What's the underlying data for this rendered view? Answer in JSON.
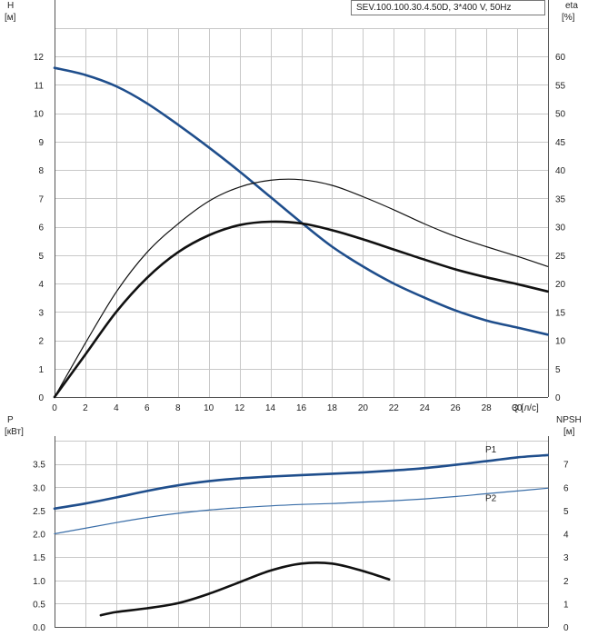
{
  "legend_text": "SEV.100.100.30.4.50D, 3*400 V, 50Hz",
  "chart_data": [
    {
      "type": "line",
      "ylabel_left": "H",
      "ylabel_left_unit": "[м]",
      "ylabel_right": "eta",
      "ylabel_right_unit": "[%]",
      "xlabel": "Q [л/с]",
      "xlim": [
        0,
        32
      ],
      "ylim_left": [
        0,
        13
      ],
      "ylim_right": [
        0,
        65
      ],
      "x_ticks": [
        0,
        2,
        4,
        6,
        8,
        10,
        12,
        14,
        16,
        18,
        20,
        22,
        24,
        26,
        28,
        30
      ],
      "y_ticks_left": [
        0,
        1,
        2,
        3,
        4,
        5,
        6,
        7,
        8,
        9,
        10,
        11,
        12
      ],
      "y_ticks_right": [
        0,
        5,
        10,
        15,
        20,
        25,
        30,
        35,
        40,
        45,
        50,
        55,
        60
      ],
      "grid": true,
      "series": [
        {
          "name": "",
          "axis": "left",
          "color": "#1f4e8c",
          "x": [
            0,
            2,
            4,
            6,
            8,
            10,
            12,
            14,
            16,
            18,
            20,
            22,
            24,
            26,
            28,
            30,
            32
          ],
          "y": [
            11.6,
            11.35,
            10.95,
            10.35,
            9.6,
            8.8,
            7.95,
            7.05,
            6.15,
            5.3,
            4.6,
            4.0,
            3.5,
            3.05,
            2.7,
            2.45,
            2.2
          ]
        },
        {
          "name": "",
          "axis": "right",
          "color": "#111111",
          "weight": "thin",
          "x": [
            0,
            2,
            4,
            6,
            8,
            10,
            12,
            14,
            16,
            18,
            20,
            22,
            24,
            26,
            28,
            30,
            32
          ],
          "y": [
            0,
            9.5,
            18.5,
            25.5,
            30.5,
            34.5,
            37.0,
            38.2,
            38.3,
            37.3,
            35.3,
            33.0,
            30.5,
            28.3,
            26.5,
            24.8,
            23.0
          ]
        },
        {
          "name": "",
          "axis": "right",
          "color": "#111111",
          "weight": "thick",
          "x": [
            0,
            2,
            4,
            6,
            8,
            10,
            12,
            14,
            16,
            18,
            20,
            22,
            24,
            26,
            28,
            30,
            32
          ],
          "y": [
            0,
            7.5,
            15.0,
            21.0,
            25.5,
            28.5,
            30.3,
            30.9,
            30.6,
            29.4,
            27.8,
            26.0,
            24.2,
            22.5,
            21.1,
            19.9,
            18.6
          ]
        }
      ]
    },
    {
      "type": "line",
      "ylabel_left": "P",
      "ylabel_left_unit": "[кВт]",
      "ylabel_right": "NPSH",
      "ylabel_right_unit": "[м]",
      "xlim": [
        0,
        32
      ],
      "ylim_left": [
        0,
        4.0
      ],
      "ylim_right": [
        0,
        8
      ],
      "y_ticks_left": [
        "0.0",
        "0.5",
        "1.0",
        "1.5",
        "2.0",
        "2.5",
        "3.0",
        "3.5"
      ],
      "y_ticks_right": [
        0,
        1,
        2,
        3,
        4,
        5,
        6,
        7
      ],
      "grid": true,
      "series": [
        {
          "name": "P1",
          "axis": "left",
          "color": "#1f4e8c",
          "weight": "thick",
          "x": [
            0,
            2,
            4,
            6,
            8,
            10,
            12,
            14,
            16,
            18,
            20,
            22,
            24,
            26,
            28,
            30,
            32
          ],
          "y": [
            2.54,
            2.65,
            2.78,
            2.92,
            3.04,
            3.13,
            3.19,
            3.23,
            3.26,
            3.29,
            3.32,
            3.36,
            3.41,
            3.48,
            3.56,
            3.64,
            3.69
          ]
        },
        {
          "name": "P2",
          "axis": "left",
          "color": "#3a6ea8",
          "weight": "thin",
          "x": [
            0,
            2,
            4,
            6,
            8,
            10,
            12,
            14,
            16,
            18,
            20,
            22,
            24,
            26,
            28,
            30,
            32
          ],
          "y": [
            2.0,
            2.12,
            2.24,
            2.35,
            2.44,
            2.51,
            2.56,
            2.6,
            2.63,
            2.65,
            2.68,
            2.71,
            2.75,
            2.8,
            2.86,
            2.92,
            2.98
          ]
        },
        {
          "name": "",
          "axis": "right",
          "color": "#111111",
          "weight": "thick",
          "x": [
            3,
            4,
            6,
            8,
            10,
            12,
            14,
            16,
            18,
            20,
            21.7
          ],
          "y": [
            0.5,
            0.64,
            0.8,
            1.02,
            1.42,
            1.92,
            2.42,
            2.72,
            2.72,
            2.4,
            2.04
          ]
        }
      ]
    }
  ]
}
